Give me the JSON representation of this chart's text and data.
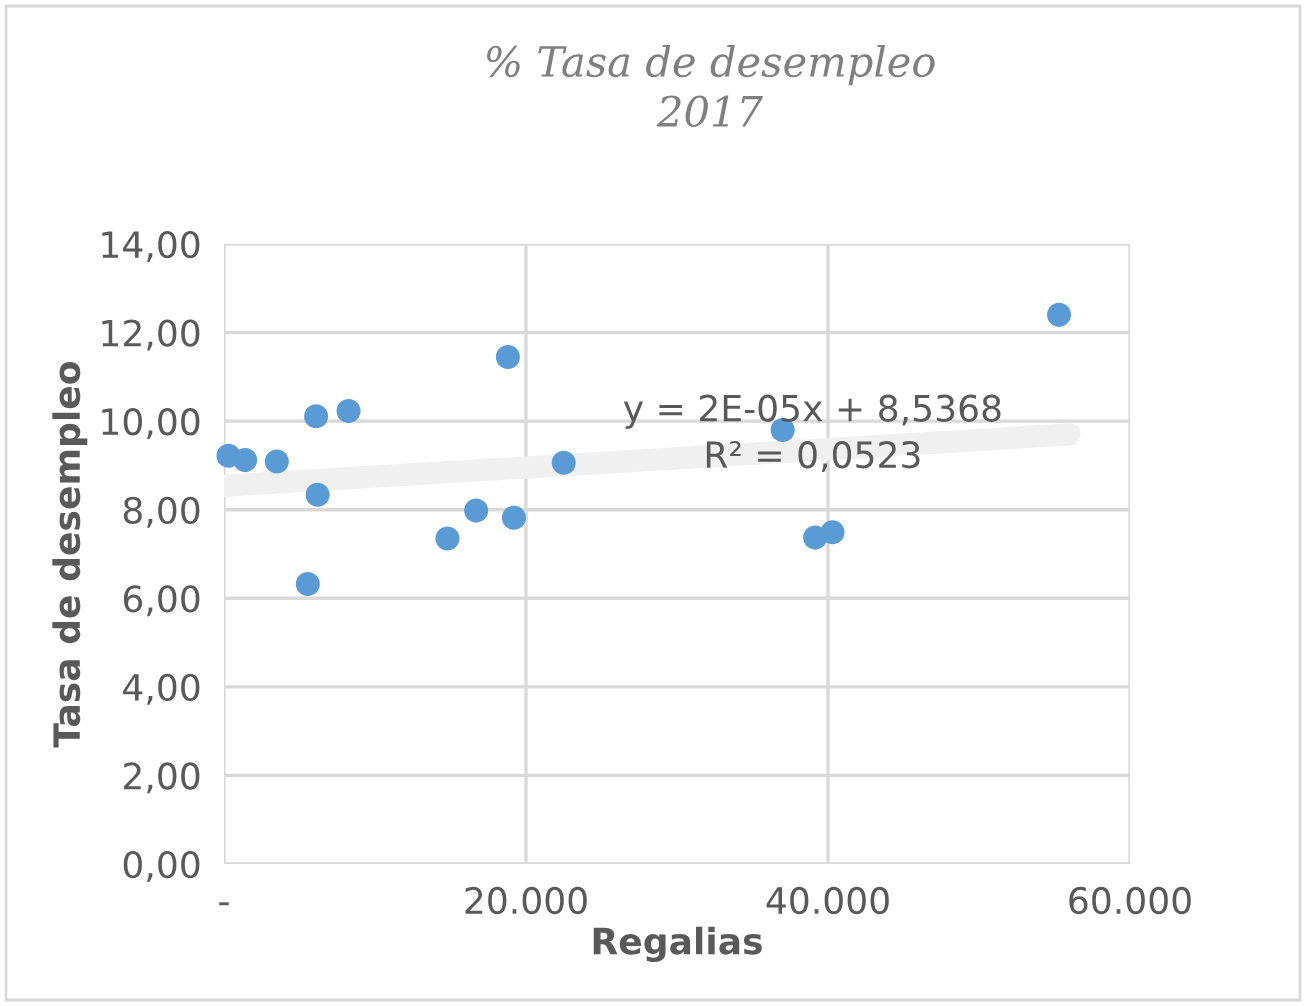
{
  "chart_data": {
    "type": "scatter",
    "title": "% Tasa de desempleo\n2017",
    "xlabel": "Regalias",
    "ylabel": "Tasa de desempleo",
    "series": [
      {
        "marker": "circle",
        "color": "#5b9bd5",
        "x": [
          300,
          1400,
          3500,
          6100,
          8250,
          6200,
          5550,
          14800,
          16700,
          18800,
          19200,
          22500,
          37000,
          39150,
          40300,
          55300
        ],
        "values": [
          9.22,
          9.12,
          9.09,
          10.11,
          10.23,
          8.34,
          6.32,
          7.35,
          7.98,
          11.45,
          7.82,
          9.06,
          9.8,
          7.37,
          7.49,
          12.4
        ]
      },
      {
        "type": "line",
        "marker": "none",
        "color": "#f0f0f0",
        "x": [
          0,
          56000
        ],
        "values": [
          8.54,
          9.7
        ]
      }
    ],
    "annotations": [
      "y = 2E-05x + 8,5368",
      "R² = 0,0523"
    ],
    "xlim": [
      0,
      60000
    ],
    "xticks": [
      {
        "value": 0,
        "label": "-"
      },
      {
        "value": 20000,
        "label": "20.000"
      },
      {
        "value": 40000,
        "label": "40.000"
      },
      {
        "value": 60000,
        "label": "60.000"
      }
    ],
    "ylim": [
      0,
      14
    ],
    "yticks": [
      {
        "value": 0,
        "label": "0,00"
      },
      {
        "value": 2,
        "label": "2,00"
      },
      {
        "value": 4,
        "label": "4,00"
      },
      {
        "value": 6,
        "label": "6,00"
      },
      {
        "value": 8,
        "label": "8,00"
      },
      {
        "value": 10,
        "label": "10,00"
      },
      {
        "value": 12,
        "label": "12,00"
      },
      {
        "value": 14,
        "label": "14,00"
      }
    ],
    "grid": true,
    "legend": false
  }
}
